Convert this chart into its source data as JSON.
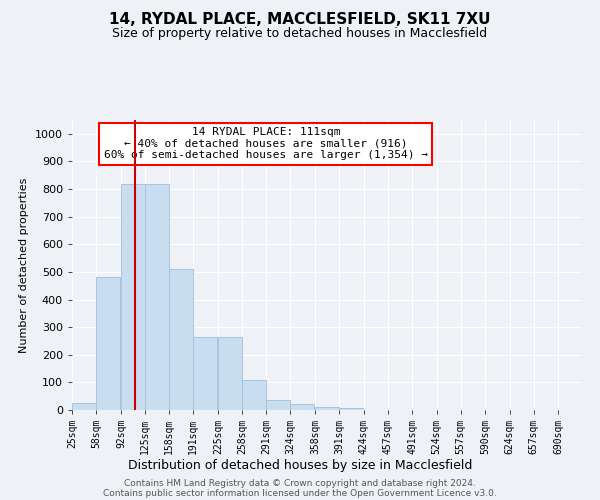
{
  "title": "14, RYDAL PLACE, MACCLESFIELD, SK11 7XU",
  "subtitle": "Size of property relative to detached houses in Macclesfield",
  "xlabel": "Distribution of detached houses by size in Macclesfield",
  "ylabel": "Number of detached properties",
  "bar_color": "#c8ddef",
  "bar_edge_color": "#a0c0dd",
  "annotation_box_text": "14 RYDAL PLACE: 111sqm\n← 40% of detached houses are smaller (916)\n60% of semi-detached houses are larger (1,354) →",
  "vline_x": 111,
  "vline_color": "#cc0000",
  "categories": [
    "25sqm",
    "58sqm",
    "92sqm",
    "125sqm",
    "158sqm",
    "191sqm",
    "225sqm",
    "258sqm",
    "291sqm",
    "324sqm",
    "358sqm",
    "391sqm",
    "424sqm",
    "457sqm",
    "491sqm",
    "524sqm",
    "557sqm",
    "590sqm",
    "624sqm",
    "657sqm",
    "690sqm"
  ],
  "bin_edges": [
    25,
    58,
    92,
    125,
    158,
    191,
    225,
    258,
    291,
    324,
    358,
    391,
    424,
    457,
    491,
    524,
    557,
    590,
    624,
    657,
    690
  ],
  "bin_width": 33,
  "values": [
    25,
    480,
    820,
    820,
    510,
    265,
    265,
    110,
    35,
    20,
    10,
    7,
    0,
    0,
    0,
    0,
    0,
    0,
    0,
    0,
    0
  ],
  "ylim": [
    0,
    1050
  ],
  "yticks": [
    0,
    100,
    200,
    300,
    400,
    500,
    600,
    700,
    800,
    900,
    1000
  ],
  "footer_line1": "Contains HM Land Registry data © Crown copyright and database right 2024.",
  "footer_line2": "Contains public sector information licensed under the Open Government Licence v3.0.",
  "bg_color": "#eef2f7",
  "plot_bg_color": "#eef2f7",
  "title_fontsize": 11,
  "subtitle_fontsize": 9
}
